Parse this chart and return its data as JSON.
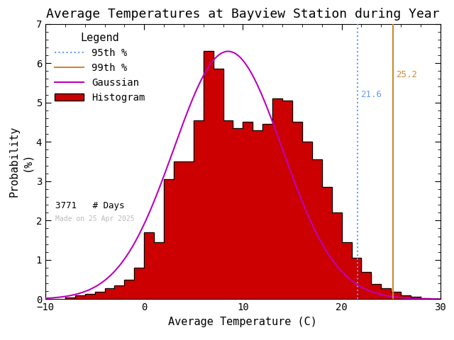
{
  "title": "Average Temperatures at Bayview Station during Year",
  "xlabel": "Average Temperature (C)",
  "ylabel_top": "Probability",
  "ylabel_bottom": "(%)",
  "xlim": [
    -10,
    30
  ],
  "ylim": [
    0,
    7
  ],
  "yticks": [
    0,
    1,
    2,
    3,
    4,
    5,
    6,
    7
  ],
  "xticks": [
    -10,
    0,
    10,
    20,
    30
  ],
  "bin_edges": [
    -8,
    -7,
    -6,
    -5,
    -4,
    -3,
    -2,
    -1,
    0,
    1,
    2,
    3,
    4,
    5,
    6,
    7,
    8,
    9,
    10,
    11,
    12,
    13,
    14,
    15,
    16,
    17,
    18,
    19,
    20,
    21,
    22,
    23,
    24,
    25,
    26,
    27,
    28,
    29,
    30
  ],
  "bar_heights": [
    0.05,
    0.1,
    0.13,
    0.18,
    0.28,
    0.35,
    0.5,
    0.8,
    1.7,
    1.45,
    3.05,
    3.5,
    3.5,
    4.55,
    6.3,
    5.85,
    4.55,
    4.35,
    4.5,
    4.3,
    4.45,
    5.1,
    5.05,
    4.5,
    4.0,
    3.55,
    2.85,
    2.2,
    1.45,
    1.05,
    0.7,
    0.38,
    0.28,
    0.18,
    0.1,
    0.07,
    0.03,
    0.0
  ],
  "gauss_mean": 8.5,
  "gauss_std": 5.5,
  "gauss_amplitude": 6.3,
  "percentile_95": 21.6,
  "percentile_99": 25.2,
  "n_days": 3771,
  "bar_color": "#cc0000",
  "bar_edge_color": "#000000",
  "gauss_color": "#bb00bb",
  "p95_color": "#6699ff",
  "p99_color": "#cc8833",
  "title_fontsize": 13,
  "axis_fontsize": 11,
  "legend_fontsize": 10,
  "watermark": "Made on 25 Apr 2025",
  "watermark_color": "#bbbbbb",
  "background_color": "#ffffff"
}
